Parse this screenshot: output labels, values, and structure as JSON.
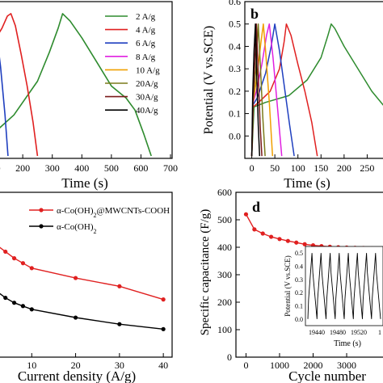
{
  "chart_data": [
    {
      "panel_label": "",
      "type": "line",
      "title": "",
      "xlabel": "Time (s)",
      "ylabel": "",
      "xlim": [
        0,
        700
      ],
      "ylim": [
        -0.1,
        0.55
      ],
      "xticks": [
        "100",
        "200",
        "300",
        "400",
        "500",
        "600",
        "700"
      ],
      "grid": false,
      "legend_position": "top-right",
      "series": [
        {
          "name": "2 A/g",
          "color": "#2e8b2e",
          "x": [
            0,
            80,
            170,
            250,
            290,
            320,
            335,
            360,
            400,
            450,
            500,
            550,
            580,
            610,
            635
          ],
          "y": [
            -0.09,
            -0.02,
            0.08,
            0.22,
            0.34,
            0.44,
            0.5,
            0.47,
            0.4,
            0.3,
            0.2,
            0.15,
            0.1,
            0.0,
            -0.09
          ]
        },
        {
          "name": "4 A/g",
          "color": "#e02020",
          "x": [
            0,
            60,
            100,
            130,
            148,
            160,
            175,
            195,
            215,
            235,
            250
          ],
          "y": [
            0.25,
            0.32,
            0.38,
            0.44,
            0.49,
            0.5,
            0.45,
            0.33,
            0.2,
            0.05,
            -0.09
          ]
        },
        {
          "name": "6 A/g",
          "color": "#1f3fbf",
          "x": [
            0,
            40,
            70,
            88,
            98,
            110,
            125,
            140,
            150
          ],
          "y": [
            0.3,
            0.37,
            0.44,
            0.49,
            0.5,
            0.43,
            0.28,
            0.08,
            -0.09
          ]
        },
        {
          "name": "8 A/g",
          "color": "#e020e0",
          "x": [
            0,
            30,
            52,
            66,
            78,
            90,
            100,
            110
          ],
          "y": [
            0.33,
            0.4,
            0.47,
            0.5,
            0.4,
            0.25,
            0.08,
            -0.09
          ]
        },
        {
          "name": "10 A/g",
          "color": "#f0a000",
          "x": [
            0,
            20,
            38,
            48,
            58,
            68,
            78
          ],
          "y": [
            0.35,
            0.42,
            0.48,
            0.5,
            0.35,
            0.15,
            -0.09
          ]
        },
        {
          "name": "20A/g",
          "color": "#7a7a1a",
          "x": [
            0,
            12,
            22,
            32,
            42,
            50
          ],
          "y": [
            0.38,
            0.45,
            0.5,
            0.35,
            0.12,
            -0.09
          ]
        },
        {
          "name": "30A/g",
          "color": "#7a1a1a",
          "x": [
            0,
            8,
            15,
            23,
            30,
            37
          ],
          "y": [
            0.4,
            0.47,
            0.5,
            0.3,
            0.1,
            -0.09
          ]
        },
        {
          "name": "40A/g",
          "color": "#000000",
          "x": [
            0,
            6,
            11,
            17,
            23,
            28
          ],
          "y": [
            0.42,
            0.48,
            0.5,
            0.3,
            0.1,
            -0.09
          ]
        }
      ]
    },
    {
      "panel_label": "b",
      "type": "line",
      "title": "",
      "xlabel": "Time (s)",
      "ylabel": "Potential (V vs.SCE)",
      "xlim": [
        -15,
        300
      ],
      "ylim": [
        -0.1,
        0.6
      ],
      "xticks": [
        "0",
        "50",
        "100",
        "150",
        "200",
        "250"
      ],
      "yticks": [
        "0.0",
        "0.1",
        "0.2",
        "0.3",
        "0.4",
        "0.5",
        "0.6"
      ],
      "grid": false,
      "series": [
        {
          "name": "",
          "color": "#2e8b2e",
          "x": [
            0,
            5,
            30,
            80,
            120,
            150,
            165,
            172,
            180,
            200,
            230,
            260,
            300
          ],
          "y": [
            -0.09,
            0.13,
            0.15,
            0.18,
            0.25,
            0.35,
            0.45,
            0.5,
            0.48,
            0.4,
            0.3,
            0.2,
            0.1
          ]
        },
        {
          "name": "",
          "color": "#e02020",
          "x": [
            0,
            3,
            15,
            40,
            60,
            70,
            75,
            85,
            100,
            115,
            130,
            142
          ],
          "y": [
            -0.09,
            0.13,
            0.15,
            0.2,
            0.3,
            0.42,
            0.5,
            0.45,
            0.32,
            0.2,
            0.06,
            -0.09
          ]
        },
        {
          "name": "",
          "color": "#1f3fbf",
          "x": [
            0,
            3,
            12,
            30,
            42,
            50,
            60,
            72,
            82,
            92
          ],
          "y": [
            -0.09,
            0.14,
            0.17,
            0.28,
            0.4,
            0.5,
            0.38,
            0.2,
            0.05,
            -0.09
          ]
        },
        {
          "name": "",
          "color": "#e020e0",
          "x": [
            0,
            3,
            10,
            22,
            32,
            38,
            46,
            56,
            65
          ],
          "y": [
            -0.09,
            0.15,
            0.2,
            0.32,
            0.45,
            0.5,
            0.35,
            0.12,
            -0.09
          ]
        },
        {
          "name": "",
          "color": "#f0a000",
          "x": [
            0,
            3,
            10,
            20,
            25,
            30,
            38,
            45
          ],
          "y": [
            -0.09,
            0.15,
            0.25,
            0.42,
            0.5,
            0.38,
            0.15,
            -0.09
          ]
        },
        {
          "name": "",
          "color": "#7a7a1a",
          "x": [
            0,
            3,
            9,
            14,
            19,
            24,
            29
          ],
          "y": [
            -0.09,
            0.16,
            0.3,
            0.5,
            0.3,
            0.08,
            -0.09
          ]
        },
        {
          "name": "",
          "color": "#7a1a1a",
          "x": [
            0,
            3,
            7,
            10,
            14,
            18,
            22
          ],
          "y": [
            -0.09,
            0.17,
            0.35,
            0.5,
            0.28,
            0.05,
            -0.09
          ]
        },
        {
          "name": "",
          "color": "#000000",
          "x": [
            0,
            2,
            5,
            8,
            11,
            14,
            17
          ],
          "y": [
            -0.09,
            0.18,
            0.38,
            0.5,
            0.25,
            0.05,
            -0.09
          ]
        }
      ]
    },
    {
      "panel_label": "",
      "type": "line",
      "title": "",
      "xlabel": "Current density (A/g)",
      "ylabel": "",
      "xlim": [
        0,
        42
      ],
      "ylim": [
        0,
        1
      ],
      "xticks": [
        "10",
        "20",
        "30",
        "40"
      ],
      "grid": false,
      "legend_position": "top-right",
      "series": [
        {
          "name": "α-Co(OH)2@MWCNTs-COOH",
          "color": "#e02020",
          "x": [
            2,
            4,
            6,
            8,
            10,
            20,
            30,
            40
          ],
          "y": [
            0.68,
            0.64,
            0.6,
            0.57,
            0.54,
            0.48,
            0.43,
            0.35
          ]
        },
        {
          "name": "α-Co(OH)2",
          "color": "#000000",
          "x": [
            2,
            4,
            6,
            8,
            10,
            20,
            30,
            40
          ],
          "y": [
            0.4,
            0.36,
            0.33,
            0.31,
            0.29,
            0.24,
            0.2,
            0.17
          ]
        }
      ]
    },
    {
      "panel_label": "d",
      "type": "line",
      "title": "",
      "xlabel": "Cycle number",
      "ylabel": "Specific capacitance (F/g)",
      "xlim": [
        -300,
        4300
      ],
      "ylim": [
        0,
        600
      ],
      "xticks": [
        "0",
        "1000",
        "2000",
        "3000"
      ],
      "yticks": [
        "0",
        "100",
        "200",
        "300",
        "400",
        "500",
        "600"
      ],
      "grid": false,
      "series": [
        {
          "name": "",
          "color": "#e02020",
          "x": [
            0,
            250,
            500,
            750,
            1000,
            1250,
            1500,
            1750,
            2000,
            2250,
            2500,
            2750,
            3000,
            3250,
            3500,
            3750,
            4000,
            4250
          ],
          "y": [
            520,
            465,
            450,
            438,
            430,
            423,
            417,
            411,
            407,
            404,
            402,
            400,
            399,
            398,
            397,
            396,
            395,
            395
          ]
        }
      ],
      "inset": {
        "xlabel": "Time (s)",
        "ylabel": "Potential (V vs.SCE)",
        "xticks": [
          "19440",
          "19480",
          "19520",
          "1"
        ],
        "yticks": [
          "0.0",
          "0.1",
          "0.2",
          "0.3",
          "0.4",
          "0.5"
        ],
        "cycles": 8,
        "ymin": 0.0,
        "ymax": 0.5
      }
    }
  ]
}
